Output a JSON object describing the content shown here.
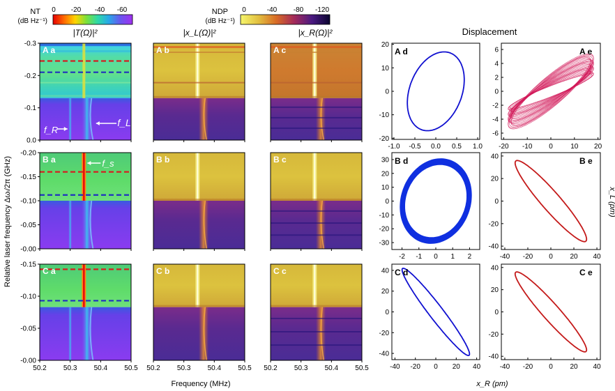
{
  "header": {
    "nt_legend": {
      "label_line1": "NT",
      "label_line2": "(dB Hz⁻¹)",
      "ticks": [
        "0",
        "-20",
        "-40",
        "-60"
      ]
    },
    "ndp_legend": {
      "label_line1": "NDP",
      "label_line2": "(dB Hz⁻¹)",
      "ticks": [
        "0",
        "-40",
        "-80",
        "-120"
      ]
    },
    "column_titles": [
      "|T(Ω)|²",
      "|x_L(Ω)|²",
      "|x_R(Ω)|²"
    ],
    "displacement_title": "Displacement"
  },
  "axes_text": {
    "y_label_spectra": "Relative laser frequency Δωₗ/2π (GHz)",
    "x_label_spectra": "Frequency (MHz)",
    "x_label_displacement": "x_R (pm)",
    "y_label_displacement": "x_L (pm)"
  },
  "annotations": {
    "fR": "f_R",
    "fL": "f_L",
    "fS": "f_s"
  },
  "chart_data": [
    {
      "type": "heatmap",
      "panel": "A a",
      "x_ticks": [
        "50.2",
        "50.3",
        "50.4",
        "50.5"
      ],
      "xlim": [
        50.2,
        50.5
      ],
      "y_ticks": [
        "-0.3",
        "-0.2",
        "-0.1",
        "0.0"
      ],
      "ylim": [
        -0.3,
        0.0
      ],
      "dashed_lines": [
        {
          "y": -0.245,
          "color": "#d42020"
        },
        {
          "y": -0.21,
          "color": "#2030c0"
        }
      ],
      "transition_y": -0.13,
      "mode_lines_mhz": [
        50.3,
        50.345,
        50.37
      ]
    },
    {
      "type": "heatmap",
      "panel": "A b",
      "x_ticks": [
        "50.2",
        "50.3",
        "50.4",
        "50.5"
      ],
      "xlim": [
        50.2,
        50.5
      ],
      "ylim": [
        -0.3,
        0.0
      ],
      "transition_y": -0.13
    },
    {
      "type": "heatmap",
      "panel": "A c",
      "x_ticks": [
        "50.2",
        "50.3",
        "50.4",
        "50.5"
      ],
      "xlim": [
        50.2,
        50.5
      ],
      "ylim": [
        -0.3,
        0.0
      ],
      "transition_y": -0.13
    },
    {
      "type": "heatmap",
      "panel": "B a",
      "x_ticks": [
        "50.2",
        "50.3",
        "50.4",
        "50.5"
      ],
      "xlim": [
        50.2,
        50.5
      ],
      "y_ticks": [
        "-0.20",
        "-0.15",
        "-0.10",
        "-0.05",
        "-0.00"
      ],
      "ylim": [
        -0.2,
        0.0
      ],
      "dashed_lines": [
        {
          "y": -0.16,
          "color": "#d42020"
        },
        {
          "y": -0.112,
          "color": "#2030c0"
        }
      ],
      "transition_y": -0.1,
      "mode_lines_mhz": [
        50.3,
        50.345,
        50.37
      ]
    },
    {
      "type": "heatmap",
      "panel": "B b",
      "x_ticks": [
        "50.2",
        "50.3",
        "50.4",
        "50.5"
      ],
      "xlim": [
        50.2,
        50.5
      ],
      "ylim": [
        -0.2,
        0.0
      ],
      "transition_y": -0.1
    },
    {
      "type": "heatmap",
      "panel": "B c",
      "x_ticks": [
        "50.2",
        "50.3",
        "50.4",
        "50.5"
      ],
      "xlim": [
        50.2,
        50.5
      ],
      "ylim": [
        -0.2,
        0.0
      ],
      "transition_y": -0.1
    },
    {
      "type": "heatmap",
      "panel": "C a",
      "x_ticks": [
        "50.2",
        "50.3",
        "50.4",
        "50.5"
      ],
      "xlim": [
        50.2,
        50.5
      ],
      "y_ticks": [
        "-0.15",
        "-0.10",
        "-0.05",
        "-0.00"
      ],
      "ylim": [
        -0.15,
        0.0
      ],
      "dashed_lines": [
        {
          "y": -0.142,
          "color": "#d42020"
        },
        {
          "y": -0.093,
          "color": "#2030c0"
        }
      ],
      "transition_y": -0.083,
      "mode_lines_mhz": [
        50.3,
        50.345,
        50.37
      ]
    },
    {
      "type": "heatmap",
      "panel": "C b",
      "x_ticks": [
        "50.2",
        "50.3",
        "50.4",
        "50.5"
      ],
      "xlim": [
        50.2,
        50.5
      ],
      "ylim": [
        -0.15,
        0.0
      ],
      "transition_y": -0.083
    },
    {
      "type": "heatmap",
      "panel": "C c",
      "x_ticks": [
        "50.2",
        "50.3",
        "50.4",
        "50.5"
      ],
      "xlim": [
        50.2,
        50.5
      ],
      "ylim": [
        -0.15,
        0.0
      ],
      "transition_y": -0.083
    },
    {
      "type": "line",
      "panel": "A d",
      "style": "ellipse",
      "x_ticks": [
        "-1.0",
        "-0.5",
        "0.0",
        "0.5",
        "1.0"
      ],
      "xlim": [
        -1.05,
        1.05
      ],
      "y_ticks": [
        "20",
        "10",
        "0",
        "-10",
        "-20"
      ],
      "ylim": [
        -20.5,
        20.5
      ],
      "center": [
        0,
        0
      ],
      "xamp": 0.68,
      "yamp": 16.8,
      "phase_deg": 73,
      "color": "#1010d0"
    },
    {
      "type": "line",
      "panel": "A e",
      "style": "quasi-periodic band",
      "x_ticks": [
        "-20",
        "-10",
        "0",
        "10",
        "20"
      ],
      "xlim": [
        -21,
        21
      ],
      "y_ticks": [
        "6",
        "4",
        "2",
        "0",
        "-2",
        "-4",
        "-6"
      ],
      "ylim": [
        -6.9,
        6.9
      ],
      "xamp": 18.2,
      "yamp": 5.4,
      "phase_deg": 28,
      "color": "#d21a5a"
    },
    {
      "type": "line",
      "panel": "B d",
      "style": "thick ellipse band",
      "x_ticks": [
        "-2",
        "-1",
        "0",
        "1",
        "2"
      ],
      "xlim": [
        -2.6,
        2.6
      ],
      "y_ticks": [
        "30",
        "20",
        "10",
        "0",
        "-10",
        "-20",
        "-30"
      ],
      "ylim": [
        -35,
        35
      ],
      "xamp_range": [
        1.85,
        2.1
      ],
      "yamp_range": [
        26.5,
        30.5
      ],
      "phase_deg": 82,
      "color": "#1030e0"
    },
    {
      "type": "line",
      "panel": "B e",
      "style": "ellipse",
      "x_ticks": [
        "-40",
        "-20",
        "0",
        "20",
        "40"
      ],
      "xlim": [
        -43,
        43
      ],
      "y_ticks": [
        "40",
        "20",
        "0",
        "-20",
        "-40"
      ],
      "ylim": [
        -43,
        43
      ],
      "xamp": 31,
      "yamp": 36,
      "phase_deg": 160,
      "color": "#c41a1a"
    },
    {
      "type": "line",
      "panel": "C d",
      "style": "ellipse",
      "x_ticks": [
        "-40",
        "-20",
        "0",
        "20",
        "40"
      ],
      "xlim": [
        -43,
        43
      ],
      "y_ticks": [
        "40",
        "20",
        "0",
        "-20",
        "-40"
      ],
      "ylim": [
        -46,
        46
      ],
      "xamp": 33,
      "yamp": 42,
      "phase_deg": 165,
      "color": "#1010d0"
    },
    {
      "type": "line",
      "panel": "C e",
      "style": "ellipse",
      "x_ticks": [
        "-40",
        "-20",
        "0",
        "20",
        "40"
      ],
      "xlim": [
        -43,
        43
      ],
      "y_ticks": [
        "40",
        "20",
        "0",
        "-20",
        "-40"
      ],
      "ylim": [
        -43,
        43
      ],
      "xamp": 31,
      "yamp": 36,
      "phase_deg": 162,
      "color": "#c41a1a"
    }
  ]
}
